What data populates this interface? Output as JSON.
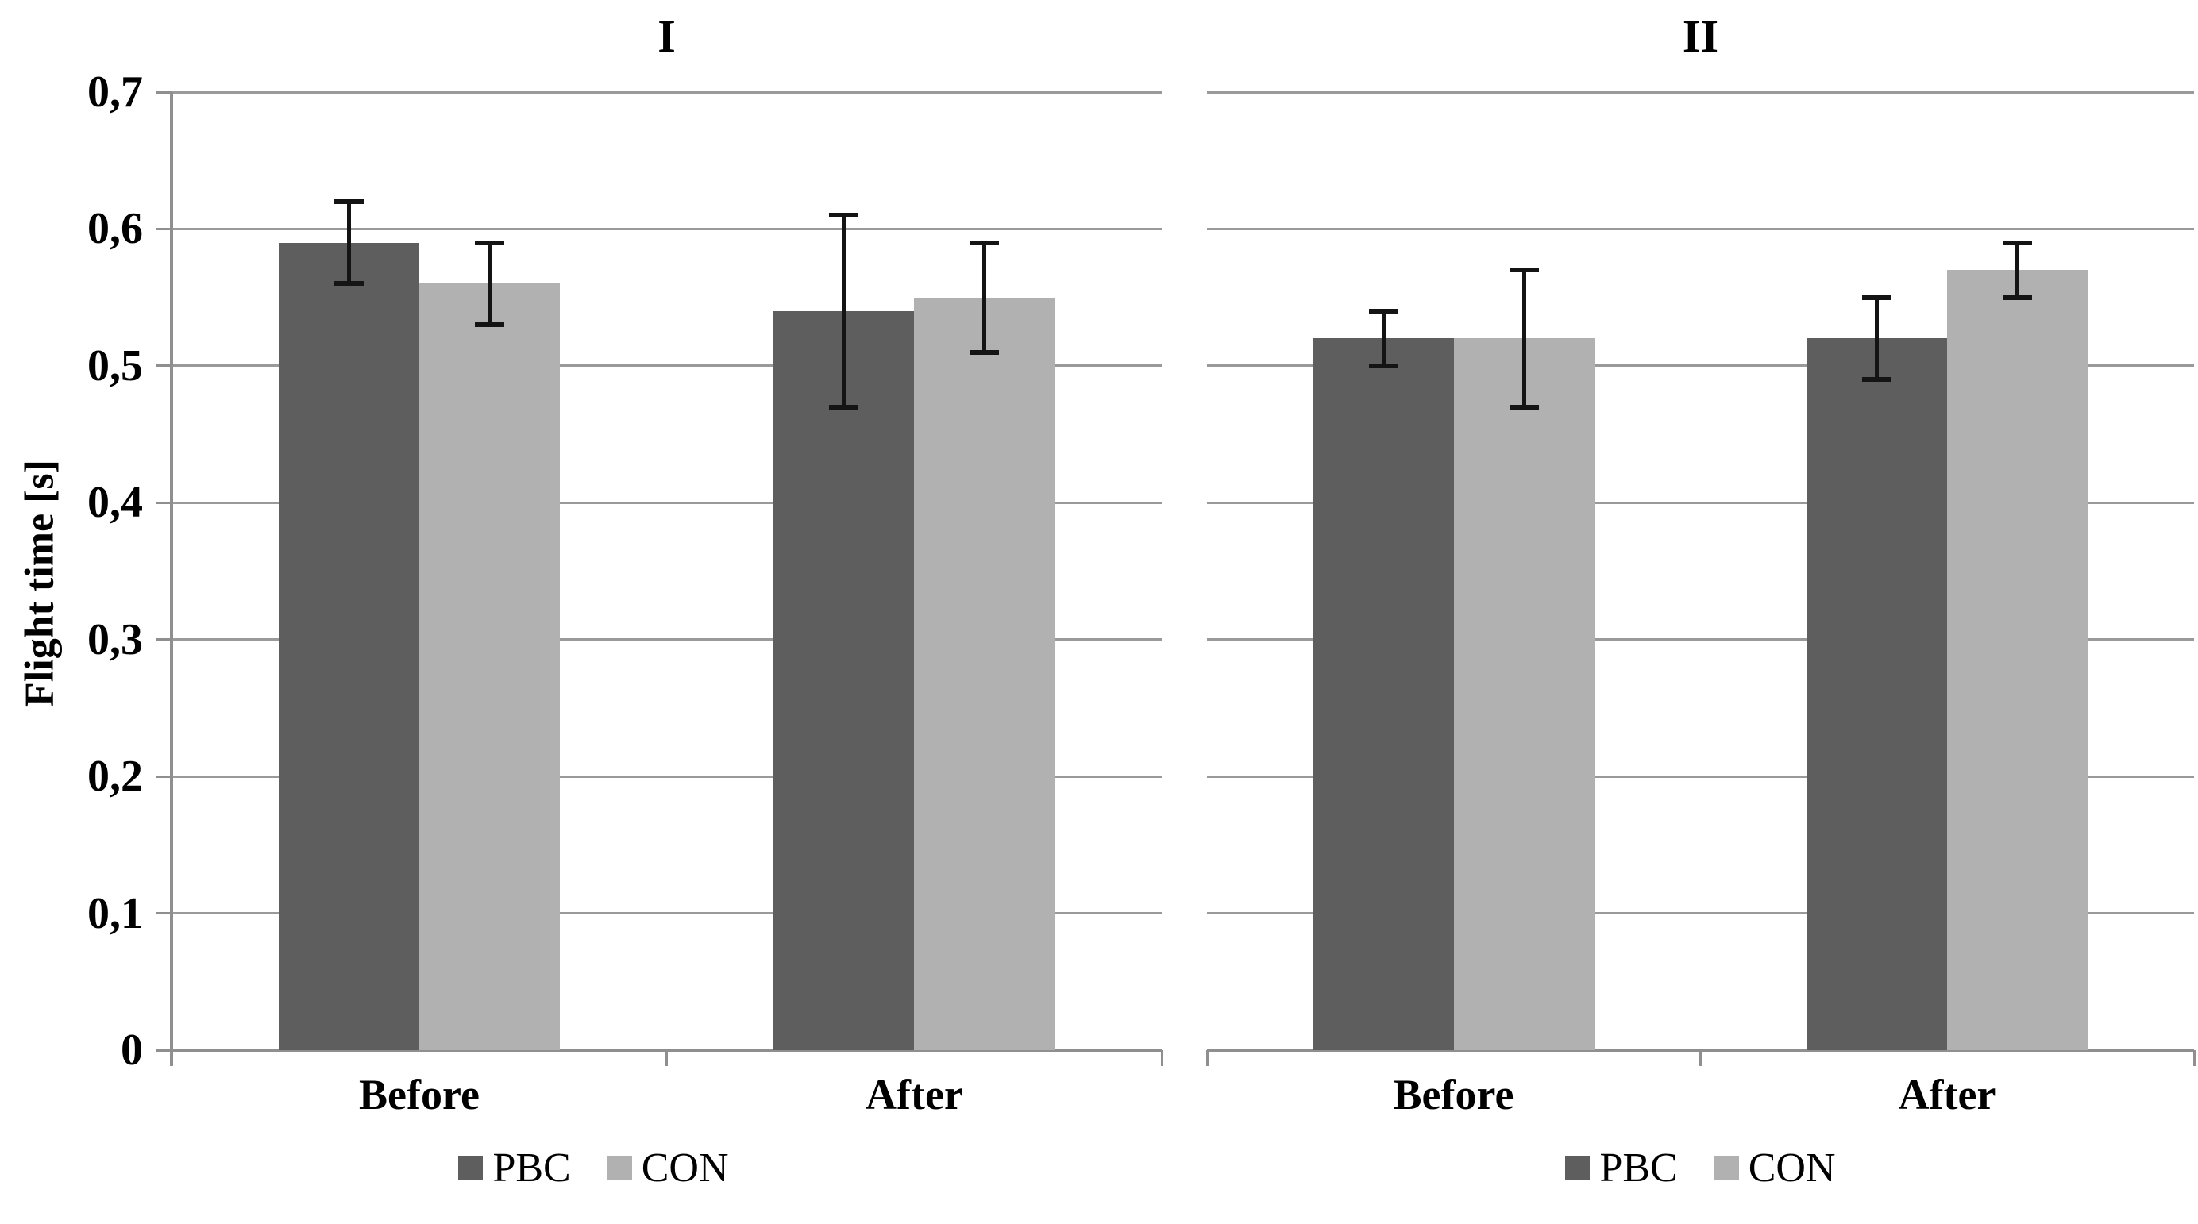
{
  "chart_data": {
    "type": "bar",
    "title": "",
    "ylabel": "Flight time [s]",
    "xlabel": "",
    "ylim": [
      0,
      0.7
    ],
    "ytick_step": 0.1,
    "ytick_labels": [
      "0",
      "0,1",
      "0,2",
      "0,3",
      "0,4",
      "0,5",
      "0,6",
      "0,7"
    ],
    "grid": true,
    "legend_position": "bottom",
    "error_bars": true,
    "colors": {
      "pbc": "#5e5e5e",
      "con": "#b1b1b1",
      "gridline": "#9a9a9a",
      "axis": "#8f8f8f",
      "error_bar": "#141414",
      "text": "#000000",
      "background": "#ffffff"
    },
    "panels": [
      {
        "title": "I",
        "categories": [
          "Before",
          "After"
        ],
        "series": [
          {
            "name": "PBC",
            "color": "#5e5e5e",
            "values": [
              0.59,
              0.54
            ],
            "err_low": [
              0.03,
              0.07
            ],
            "err_high": [
              0.03,
              0.07
            ]
          },
          {
            "name": "CON",
            "color": "#b1b1b1",
            "values": [
              0.56,
              0.55
            ],
            "err_low": [
              0.03,
              0.04
            ],
            "err_high": [
              0.03,
              0.04
            ]
          }
        ]
      },
      {
        "title": "II",
        "categories": [
          "Before",
          "After"
        ],
        "series": [
          {
            "name": "PBC",
            "color": "#5e5e5e",
            "values": [
              0.52,
              0.52
            ],
            "err_low": [
              0.02,
              0.03
            ],
            "err_high": [
              0.02,
              0.03
            ]
          },
          {
            "name": "CON",
            "color": "#b1b1b1",
            "values": [
              0.52,
              0.57
            ],
            "err_low": [
              0.05,
              0.02
            ],
            "err_high": [
              0.05,
              0.02
            ]
          }
        ]
      }
    ]
  }
}
